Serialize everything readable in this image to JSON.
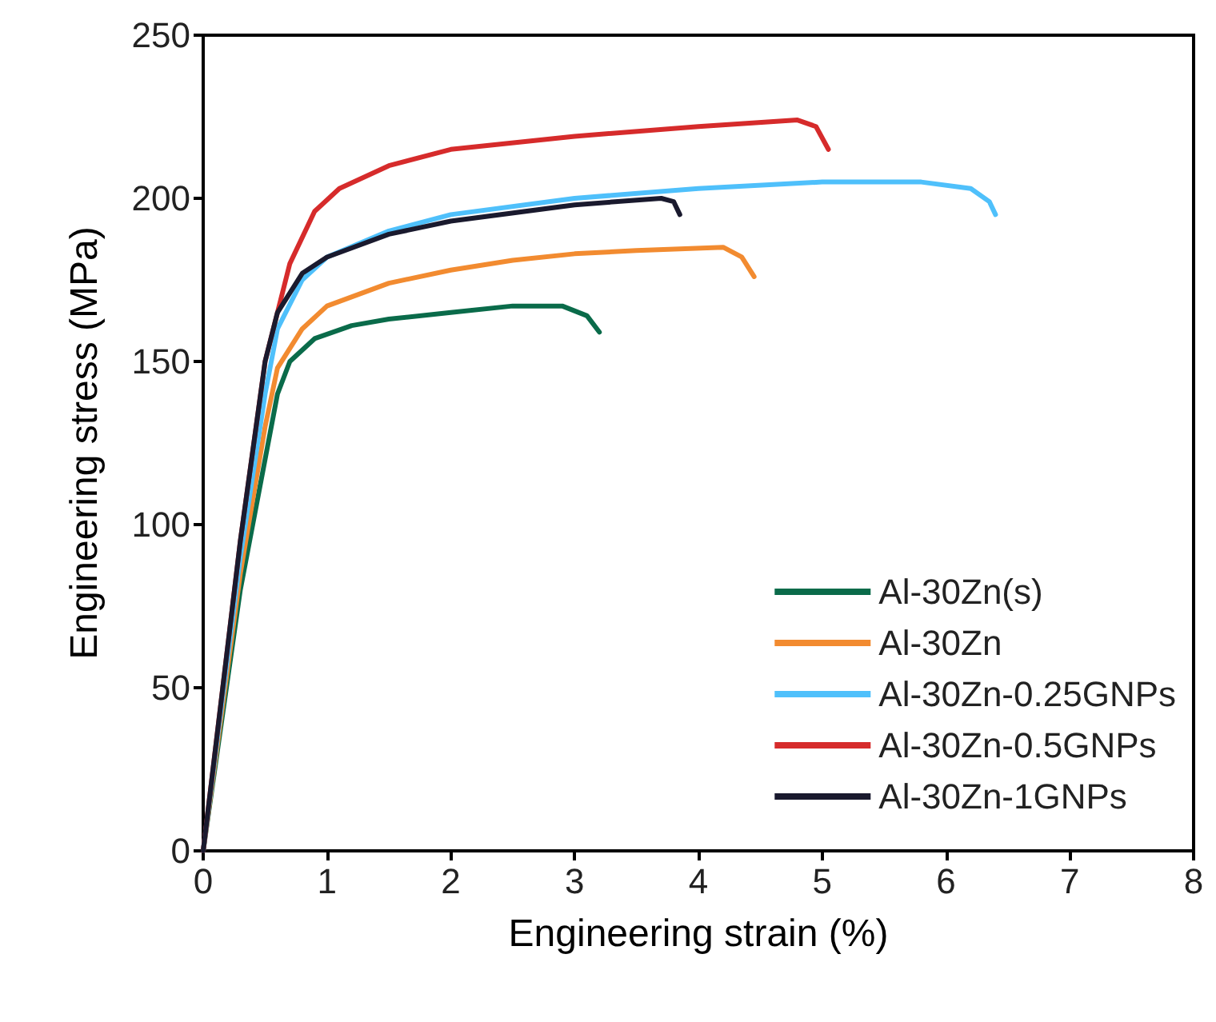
{
  "chart_data": {
    "type": "line",
    "xlabel": "Engineering strain (%)",
    "ylabel": "Engineering stress (MPa)",
    "xlim": [
      0,
      8
    ],
    "xticks": [
      0,
      1,
      2,
      3,
      4,
      5,
      6,
      7,
      8
    ],
    "ylim": [
      0,
      250
    ],
    "yticks": [
      0,
      50,
      100,
      150,
      200,
      250
    ],
    "grid": false,
    "legend": "bottom right",
    "marker": "none",
    "line_style": "solid",
    "series": [
      {
        "name": "Al-30Zn(s)",
        "color": "#0a6b4a",
        "x": [
          0,
          0.3,
          0.5,
          0.6,
          0.7,
          0.9,
          1.2,
          1.5,
          2,
          2.5,
          2.9,
          3.1,
          3.2
        ],
        "values": [
          0,
          80,
          120,
          140,
          150,
          157,
          161,
          163,
          165,
          167,
          167,
          164,
          159
        ]
      },
      {
        "name": "Al-30Zn",
        "color": "#f28b30",
        "x": [
          0,
          0.3,
          0.5,
          0.6,
          0.8,
          1,
          1.5,
          2,
          2.5,
          3,
          3.5,
          4.2,
          4.35,
          4.45
        ],
        "values": [
          0,
          85,
          130,
          148,
          160,
          167,
          174,
          178,
          181,
          183,
          184,
          185,
          182,
          176
        ]
      },
      {
        "name": "Al-30Zn-0.25GNPs",
        "color": "#4fc0fb",
        "x": [
          0,
          0.3,
          0.5,
          0.6,
          0.8,
          1,
          1.5,
          2,
          3,
          4,
          5,
          5.8,
          6.2,
          6.35,
          6.4
        ],
        "values": [
          0,
          90,
          140,
          160,
          175,
          182,
          190,
          195,
          200,
          203,
          205,
          205,
          203,
          199,
          195
        ]
      },
      {
        "name": "Al-30Zn-0.5GNPs",
        "color": "#d62b2b",
        "x": [
          0,
          0.3,
          0.5,
          0.7,
          0.9,
          1.1,
          1.5,
          2,
          3,
          4,
          4.8,
          4.95,
          5.05
        ],
        "values": [
          0,
          95,
          150,
          180,
          196,
          203,
          210,
          215,
          219,
          222,
          224,
          222,
          215
        ]
      },
      {
        "name": "Al-30Zn-1GNPs",
        "color": "#1a1a2e",
        "x": [
          0,
          0.3,
          0.5,
          0.6,
          0.8,
          1,
          1.5,
          2,
          3,
          3.7,
          3.8,
          3.85
        ],
        "values": [
          0,
          95,
          150,
          165,
          177,
          182,
          189,
          193,
          198,
          200,
          199,
          195
        ]
      }
    ]
  }
}
